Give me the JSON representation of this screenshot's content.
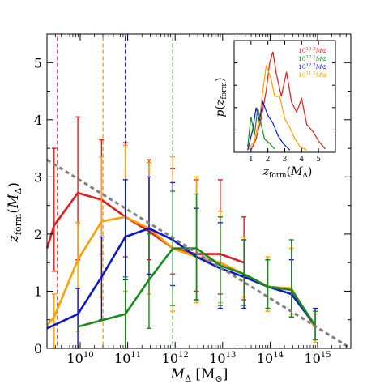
{
  "chart_data": [
    {
      "type": "line",
      "role": "main",
      "xlabel": "M_Δ [M_⊙]",
      "ylabel": "z_form(M_Δ)",
      "x_scale": "log",
      "xlim_log10": [
        9.3,
        15.7
      ],
      "ylim": [
        0,
        5.5
      ],
      "x_tick_labels": [
        {
          "log10": 10,
          "mantissa": "10",
          "exp": "10"
        },
        {
          "log10": 11,
          "mantissa": "10",
          "exp": "11"
        },
        {
          "log10": 12,
          "mantissa": "10",
          "exp": "12"
        },
        {
          "log10": 13,
          "mantissa": "10",
          "exp": "13"
        },
        {
          "log10": 14,
          "mantissa": "10",
          "exp": "14"
        },
        {
          "log10": 15,
          "mantissa": "10",
          "exp": "15"
        }
      ],
      "y_ticks": [
        0,
        1,
        2,
        3,
        4,
        5
      ],
      "y_tick_labels": [
        "0",
        "1",
        "2",
        "3",
        "4",
        "5"
      ],
      "grid": false,
      "colors": {
        "red": "#e41a1c",
        "orange": "#ff9f00",
        "blue": "#0b16d6",
        "green": "#1a8a1a",
        "fit": "#808080"
      },
      "fit_line": {
        "style": "dashed",
        "color": "#808080",
        "points": [
          [
            9.3,
            3.3
          ],
          [
            15.7,
            0
          ]
        ]
      },
      "vertical_lines": [
        {
          "color": "#e41a1c",
          "log10_x": 9.52,
          "y_top": 5.45
        },
        {
          "color": "#ff9f00",
          "log10_x": 10.48,
          "y_top": 5.45
        },
        {
          "color": "#0b16d6",
          "log10_x": 10.95,
          "y_top": 5.45
        },
        {
          "color": "#1a8a1a",
          "log10_x": 11.95,
          "y_top": 5.45
        }
      ],
      "series": [
        {
          "color": "#e41a1c",
          "points": [
            {
              "log10_x": 9.3,
              "y": 1.75
            },
            {
              "log10_x": 9.45,
              "y": 2.15,
              "err": [
                1.35,
                3.5
              ]
            },
            {
              "log10_x": 9.95,
              "y": 2.72,
              "err": [
                1.55,
                4.05
              ]
            },
            {
              "log10_x": 10.45,
              "y": 2.6,
              "err": [
                1.65,
                3.65
              ]
            },
            {
              "log10_x": 10.95,
              "y": 2.3,
              "err": [
                1.6,
                3.6
              ]
            },
            {
              "log10_x": 11.45,
              "y": 2.05,
              "err": [
                1.55,
                3.3
              ]
            },
            {
              "log10_x": 11.95,
              "y": 1.75,
              "err": [
                1.3,
                3.15
              ]
            },
            {
              "log10_x": 12.45,
              "y": 1.65,
              "err": [
                1.0,
                2.95
              ]
            },
            {
              "log10_x": 12.95,
              "y": 1.65,
              "err": [
                0.95,
                2.95
              ]
            },
            {
              "log10_x": 13.45,
              "y": 1.5,
              "err": [
                0.85,
                2.3
              ]
            }
          ]
        },
        {
          "color": "#ff9f00",
          "points": [
            {
              "log10_x": 9.3,
              "y": 0.4
            },
            {
              "log10_x": 9.45,
              "y": 0.55,
              "err": [
                0.0,
                0.95
              ]
            },
            {
              "log10_x": 9.95,
              "y": 1.55,
              "err": [
                0.3,
                2.2
              ]
            },
            {
              "log10_x": 10.45,
              "y": 2.22,
              "err": [
                0.9,
                3.35
              ]
            },
            {
              "log10_x": 10.95,
              "y": 2.3,
              "err": [
                1.0,
                3.55
              ]
            },
            {
              "log10_x": 11.45,
              "y": 2.1,
              "err": [
                0.95,
                3.25
              ]
            },
            {
              "log10_x": 11.95,
              "y": 1.75,
              "err": [
                0.65,
                3.35
              ]
            },
            {
              "log10_x": 12.45,
              "y": 1.6,
              "err": [
                0.8,
                3.0
              ]
            },
            {
              "log10_x": 12.95,
              "y": 1.5,
              "err": [
                0.8,
                2.4
              ]
            },
            {
              "log10_x": 13.45,
              "y": 1.3,
              "err": [
                0.9,
                1.95
              ]
            },
            {
              "log10_x": 13.95,
              "y": 1.08,
              "err": [
                0.65,
                1.6
              ]
            },
            {
              "log10_x": 14.45,
              "y": 1.05,
              "err": [
                0.6,
                1.75
              ]
            },
            {
              "log10_x": 14.95,
              "y": 0.35,
              "err": [
                0.1,
                0.6
              ]
            }
          ]
        },
        {
          "color": "#0b16d6",
          "points": [
            {
              "log10_x": 9.3,
              "y": 0.35
            },
            {
              "log10_x": 9.95,
              "y": 0.6,
              "err": [
                0.0,
                1.05
              ]
            },
            {
              "log10_x": 10.45,
              "y": 1.25,
              "err": [
                0.5,
                1.95
              ]
            },
            {
              "log10_x": 10.95,
              "y": 1.95,
              "err": [
                1.2,
                2.95
              ]
            },
            {
              "log10_x": 11.45,
              "y": 2.1,
              "err": [
                1.3,
                3.0
              ]
            },
            {
              "log10_x": 11.95,
              "y": 1.9,
              "err": [
                1.1,
                2.9
              ]
            },
            {
              "log10_x": 12.45,
              "y": 1.6,
              "err": [
                0.85,
                2.45
              ]
            },
            {
              "log10_x": 12.95,
              "y": 1.4,
              "err": [
                0.7,
                2.2
              ]
            },
            {
              "log10_x": 13.45,
              "y": 1.25,
              "err": [
                0.7,
                1.9
              ]
            },
            {
              "log10_x": 13.95,
              "y": 1.08,
              "err": [
                0.7,
                1.55
              ]
            },
            {
              "log10_x": 14.45,
              "y": 0.95,
              "err": [
                0.55,
                1.55
              ]
            },
            {
              "log10_x": 14.95,
              "y": 0.4,
              "err": [
                0.15,
                0.7
              ]
            }
          ]
        },
        {
          "color": "#1a8a1a",
          "points": [
            {
              "log10_x": 9.95,
              "y": 0.38
            },
            {
              "log10_x": 10.95,
              "y": 0.6,
              "err": [
                0.0,
                1.25
              ]
            },
            {
              "log10_x": 11.45,
              "y": 1.2,
              "err": [
                0.35,
                2.0
              ]
            },
            {
              "log10_x": 11.95,
              "y": 1.75,
              "err": [
                0.75,
                2.75
              ]
            },
            {
              "log10_x": 12.45,
              "y": 1.75,
              "err": [
                0.85,
                2.7
              ]
            },
            {
              "log10_x": 12.95,
              "y": 1.45,
              "err": [
                0.75,
                2.3
              ]
            },
            {
              "log10_x": 13.45,
              "y": 1.3,
              "err": [
                0.75,
                1.9
              ]
            },
            {
              "log10_x": 13.95,
              "y": 1.08,
              "err": [
                0.7,
                1.55
              ]
            },
            {
              "log10_x": 14.45,
              "y": 1.02,
              "err": [
                0.55,
                1.9
              ]
            },
            {
              "log10_x": 14.95,
              "y": 0.4,
              "err": [
                0.15,
                0.65
              ]
            }
          ]
        }
      ]
    },
    {
      "type": "line",
      "role": "inset",
      "xlabel": "z_form(M_Δ)",
      "ylabel": "p(z_form)",
      "xlim": [
        0,
        6
      ],
      "ylim": [
        0,
        1
      ],
      "x_ticks": [
        1,
        2,
        3,
        4,
        5
      ],
      "x_tick_labels": [
        "1",
        "2",
        "3",
        "4",
        "5"
      ],
      "legend_position": "top-right",
      "legend": [
        {
          "mantissa": "10",
          "exp": "10.3",
          "unit": "M⊙",
          "color": "#e41a1c"
        },
        {
          "mantissa": "10",
          "exp": "12.1",
          "unit": "M⊙",
          "color": "#1a8a1a"
        },
        {
          "mantissa": "10",
          "exp": "12.2",
          "unit": "M⊙",
          "color": "#0b16d6"
        },
        {
          "mantissa": "10",
          "exp": "11.5",
          "unit": "M⊙",
          "color": "#ff9f00"
        }
      ],
      "series": [
        {
          "color": "#e41a1c",
          "points": [
            [
              1.0,
              0.02
            ],
            [
              1.3,
              0.12
            ],
            [
              1.6,
              0.3
            ],
            [
              1.9,
              0.55
            ],
            [
              2.1,
              0.8
            ],
            [
              2.3,
              0.9
            ],
            [
              2.5,
              0.7
            ],
            [
              2.8,
              0.5
            ],
            [
              3.1,
              0.72
            ],
            [
              3.4,
              0.45
            ],
            [
              3.7,
              0.36
            ],
            [
              4.0,
              0.48
            ],
            [
              4.3,
              0.25
            ],
            [
              4.7,
              0.18
            ],
            [
              5.0,
              0.1
            ],
            [
              5.4,
              0.03
            ]
          ]
        },
        {
          "color": "#ff9f00",
          "points": [
            [
              0.8,
              0.02
            ],
            [
              1.2,
              0.1
            ],
            [
              1.5,
              0.3
            ],
            [
              1.7,
              0.55
            ],
            [
              1.9,
              0.78
            ],
            [
              2.2,
              0.65
            ],
            [
              2.4,
              0.5
            ],
            [
              2.7,
              0.5
            ],
            [
              3.0,
              0.3
            ],
            [
              3.3,
              0.22
            ],
            [
              3.6,
              0.12
            ],
            [
              3.9,
              0.05
            ],
            [
              4.3,
              0.02
            ]
          ]
        },
        {
          "color": "#0b16d6",
          "points": [
            [
              0.8,
              0.02
            ],
            [
              1.1,
              0.2
            ],
            [
              1.3,
              0.4
            ],
            [
              1.5,
              0.28
            ],
            [
              1.7,
              0.45
            ],
            [
              2.0,
              0.33
            ],
            [
              2.3,
              0.26
            ],
            [
              2.6,
              0.15
            ],
            [
              2.9,
              0.08
            ],
            [
              3.3,
              0.02
            ]
          ]
        },
        {
          "color": "#1a8a1a",
          "points": [
            [
              0.8,
              0.05
            ],
            [
              1.0,
              0.32
            ],
            [
              1.2,
              0.15
            ],
            [
              1.4,
              0.4
            ],
            [
              1.6,
              0.25
            ],
            [
              1.8,
              0.12
            ],
            [
              2.1,
              0.08
            ],
            [
              2.4,
              0.03
            ]
          ]
        }
      ]
    }
  ]
}
